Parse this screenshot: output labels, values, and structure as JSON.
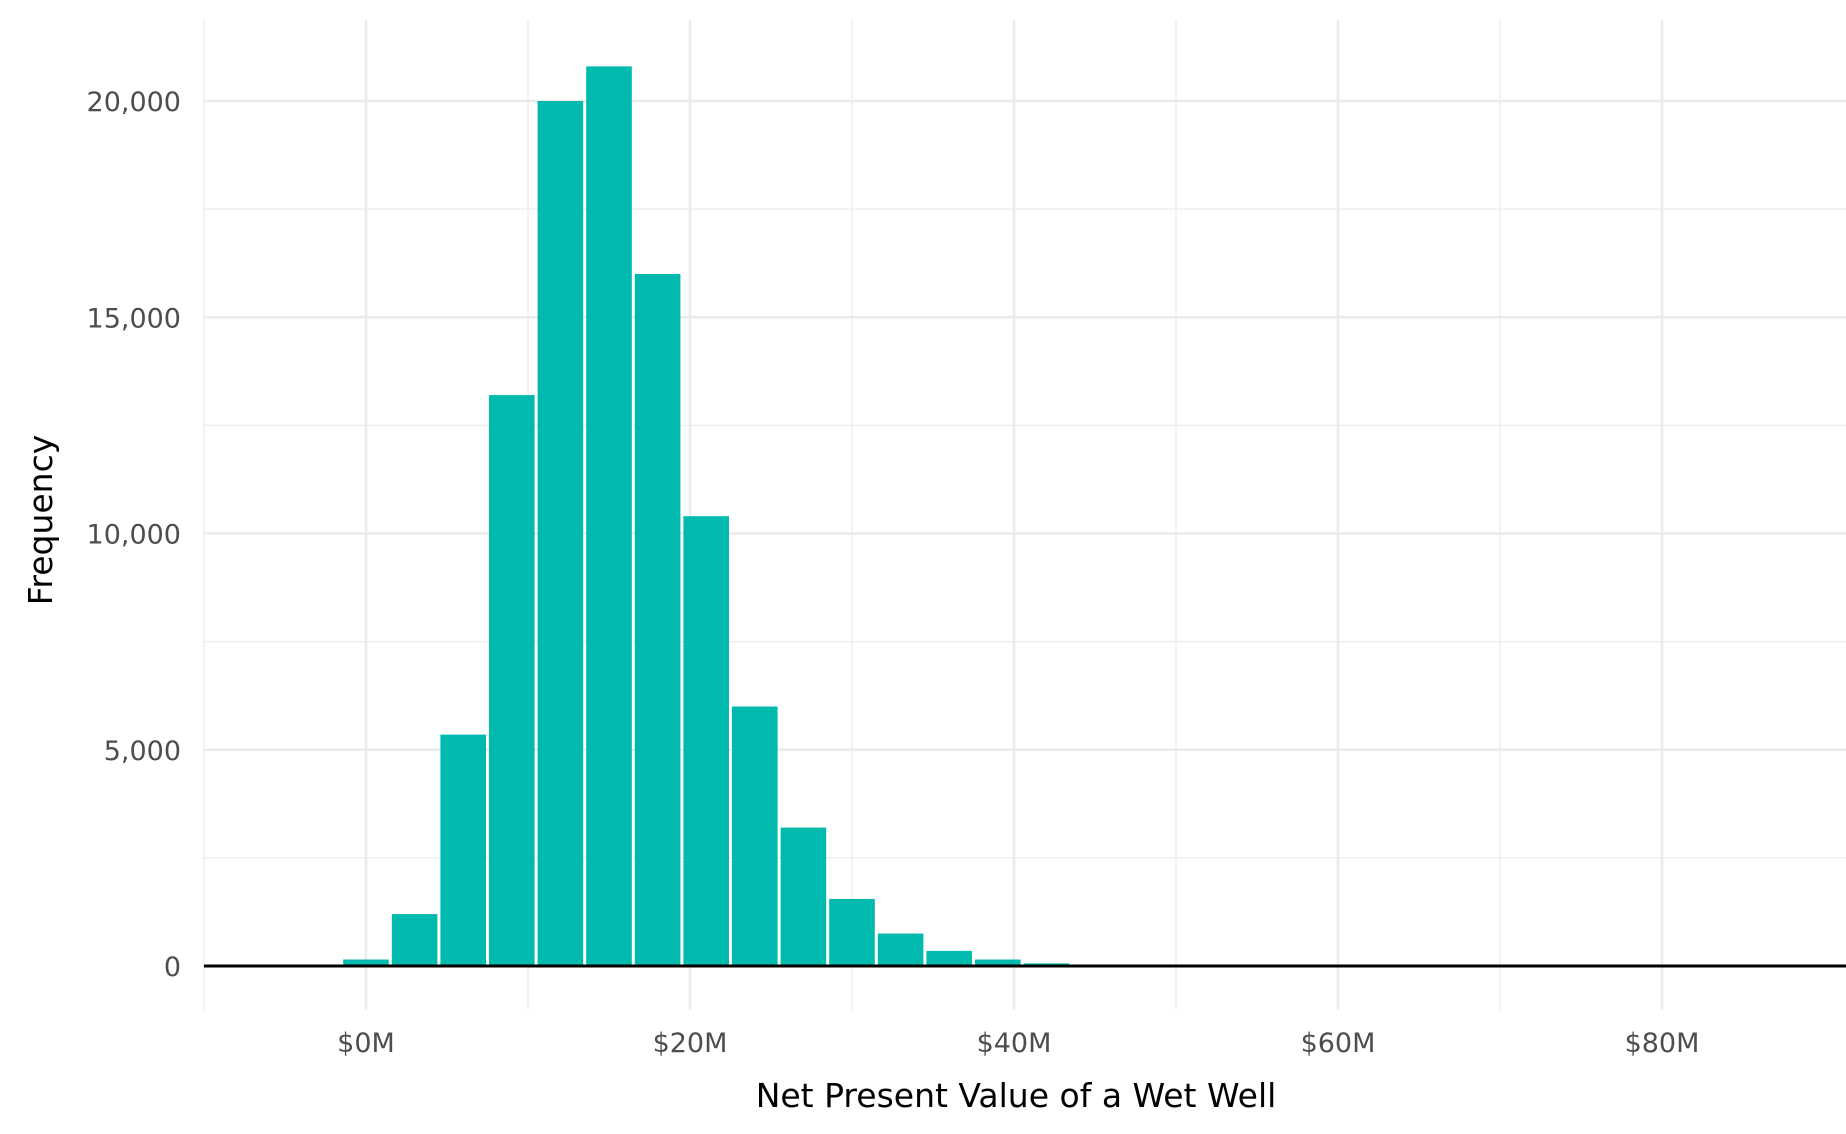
{
  "chart_data": {
    "type": "bar",
    "subtype": "histogram",
    "xlabel": "Net Present Value of a Wet Well",
    "ylabel": "Frequency",
    "x_unit": "$M",
    "xlim": [
      -10,
      88
    ],
    "ylim": [
      0,
      21500
    ],
    "x_ticks": [
      0,
      20,
      40,
      60,
      80
    ],
    "x_tick_labels": [
      "$0M",
      "$20M",
      "$40M",
      "$60M",
      "$80M"
    ],
    "x_minor_ticks": [
      -10,
      10,
      30,
      50,
      70
    ],
    "y_ticks": [
      0,
      5000,
      10000,
      15000,
      20000
    ],
    "y_tick_labels": [
      "0",
      "5,000",
      "10,000",
      "15,000",
      "20,000"
    ],
    "grid": true,
    "bar_color": "#00BAAD",
    "bin_width": 3,
    "bins": [
      {
        "x": 0,
        "count": 150
      },
      {
        "x": 3,
        "count": 1200
      },
      {
        "x": 6,
        "count": 5350
      },
      {
        "x": 9,
        "count": 13200
      },
      {
        "x": 12,
        "count": 20000
      },
      {
        "x": 15,
        "count": 20800
      },
      {
        "x": 18,
        "count": 16000
      },
      {
        "x": 21,
        "count": 10400
      },
      {
        "x": 24,
        "count": 6000
      },
      {
        "x": 27,
        "count": 3200
      },
      {
        "x": 30,
        "count": 1550
      },
      {
        "x": 33,
        "count": 750
      },
      {
        "x": 36,
        "count": 350
      },
      {
        "x": 39,
        "count": 150
      },
      {
        "x": 42,
        "count": 60
      },
      {
        "x": 45,
        "count": 20
      },
      {
        "x": 48,
        "count": 8
      },
      {
        "x": 51,
        "count": 3
      }
    ]
  }
}
